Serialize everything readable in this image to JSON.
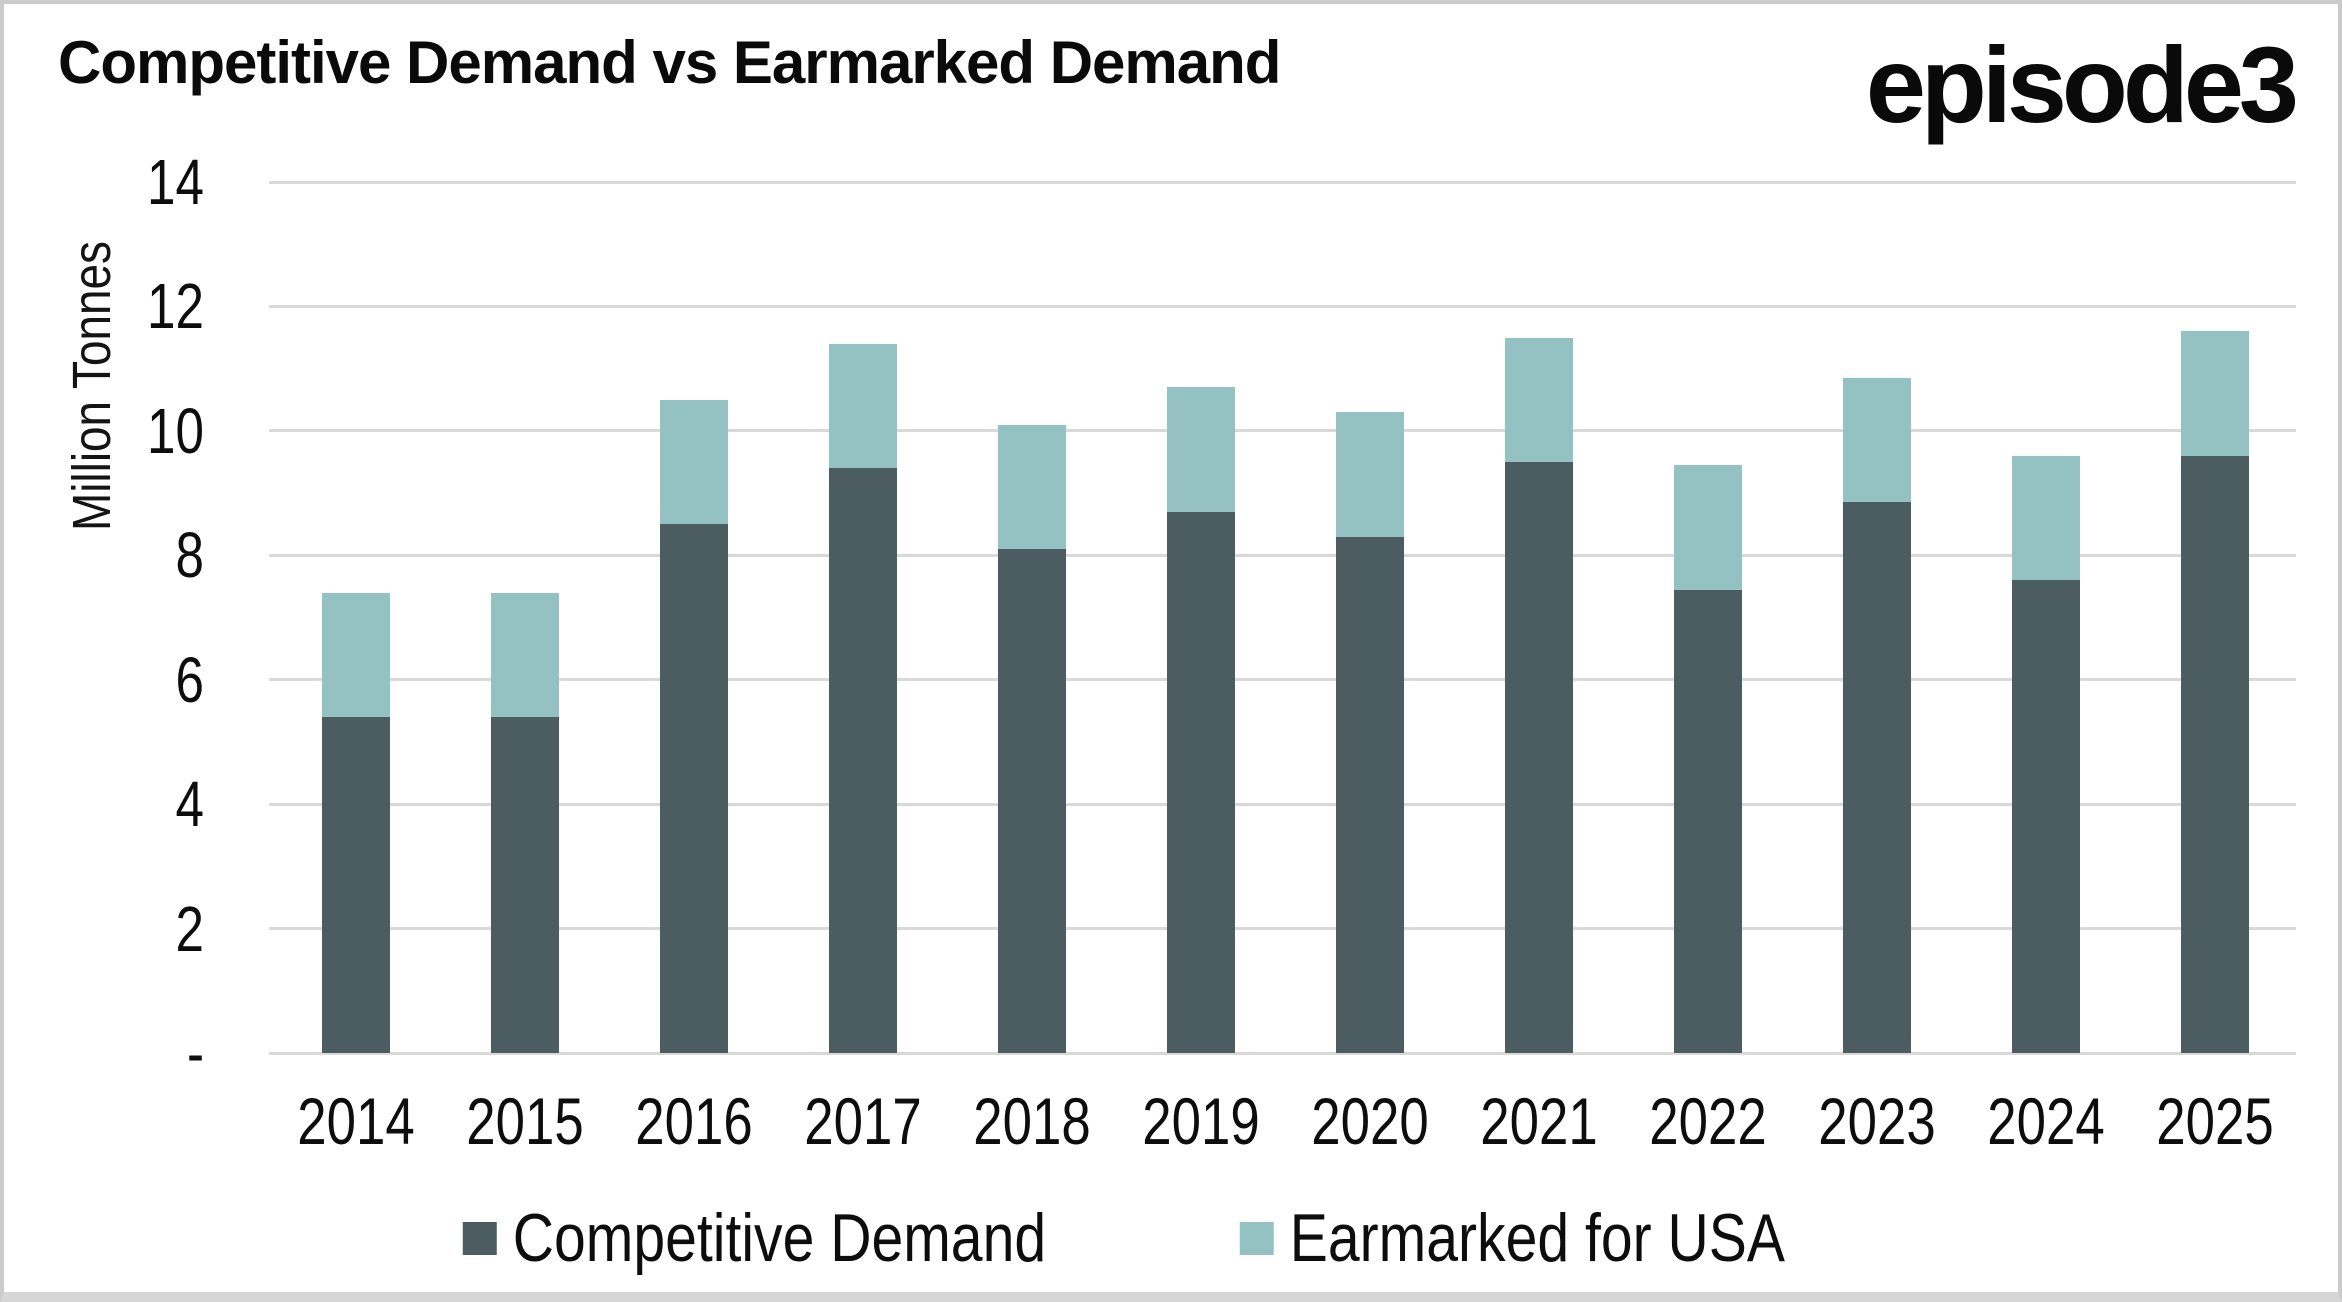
{
  "title": "Competitive Demand vs Earmarked Demand",
  "logo": "episode3",
  "chart_data": {
    "type": "bar",
    "stacked": true,
    "title": "Competitive Demand vs Earmarked Demand",
    "xlabel": "",
    "ylabel": "Million Tonnes",
    "ylim": [
      0,
      14
    ],
    "ytick_step": 2,
    "ytick_labels": [
      "-",
      "2",
      "4",
      "6",
      "8",
      "10",
      "12",
      "14"
    ],
    "grid": true,
    "legend_position": "bottom",
    "categories": [
      "2014",
      "2015",
      "2016",
      "2017",
      "2018",
      "2019",
      "2020",
      "2021",
      "2022",
      "2023",
      "2024",
      "2025"
    ],
    "series": [
      {
        "name": "Competitive Demand",
        "color": "#4B5D61",
        "values": [
          5.4,
          5.4,
          8.5,
          9.4,
          8.1,
          8.7,
          8.3,
          9.5,
          7.45,
          8.85,
          7.6,
          9.6
        ]
      },
      {
        "name": "Earmarked for USA",
        "color": "#94C2C2",
        "values": [
          2.0,
          2.0,
          2.0,
          2.0,
          2.0,
          2.0,
          2.0,
          2.0,
          2.0,
          2.0,
          2.0,
          2.0
        ]
      }
    ]
  },
  "colors": {
    "gridline": "#D9D9D9",
    "text": "#0D0D0D",
    "border": "#CBCBCB"
  }
}
